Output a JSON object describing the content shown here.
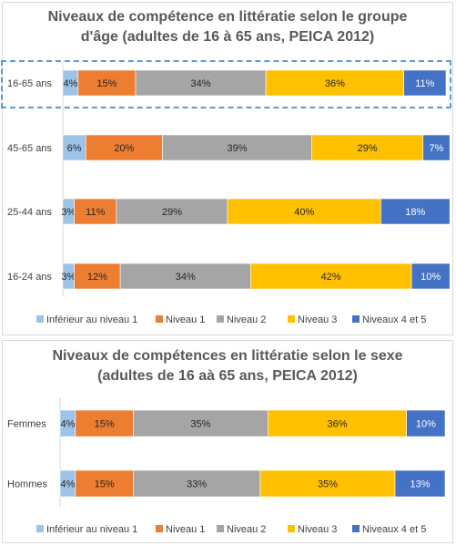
{
  "legend": [
    {
      "label": "Inférieur au niveau 1",
      "color": "#9dc3e6"
    },
    {
      "label": "Niveau 1",
      "color": "#ed7d31"
    },
    {
      "label": "Niveau 2",
      "color": "#a5a5a5"
    },
    {
      "label": "Niveau 3",
      "color": "#ffc000"
    },
    {
      "label": "Niveaux 4 et 5",
      "color": "#4472c4"
    }
  ],
  "chart_data": [
    {
      "type": "bar",
      "orientation": "horizontal-stacked-100",
      "title_lines": [
        "Niveaux de compétence en littératie selon le groupe",
        "d'âge (adultes de 16 à 65 ans, PEICA 2012)"
      ],
      "categories": [
        "16-65 ans",
        "45-65 ans",
        "25-44 ans",
        "16-24 ans"
      ],
      "series": [
        {
          "name": "Inférieur au niveau 1",
          "values": [
            4,
            6,
            3,
            3
          ]
        },
        {
          "name": "Niveau 1",
          "values": [
            15,
            20,
            11,
            12
          ]
        },
        {
          "name": "Niveau 2",
          "values": [
            34,
            39,
            29,
            34
          ]
        },
        {
          "name": "Niveau 3",
          "values": [
            36,
            29,
            40,
            42
          ]
        },
        {
          "name": "Niveaux 4 et 5",
          "values": [
            11,
            7,
            18,
            10
          ]
        }
      ],
      "highlighted_category": "16-65 ans",
      "legend_position": "bottom"
    },
    {
      "type": "bar",
      "orientation": "horizontal-stacked-100",
      "title_lines": [
        "Niveaux de compétences en littératie selon le sexe",
        "(adultes de 16 aà 65 ans, PEICA 2012)"
      ],
      "categories": [
        "Femmes",
        "Hommes"
      ],
      "series": [
        {
          "name": "Inférieur au niveau 1",
          "values": [
            4,
            4
          ]
        },
        {
          "name": "Niveau 1",
          "values": [
            15,
            15
          ]
        },
        {
          "name": "Niveau 2",
          "values": [
            35,
            33
          ]
        },
        {
          "name": "Niveau 3",
          "values": [
            36,
            35
          ]
        },
        {
          "name": "Niveaux 4 et 5",
          "values": [
            10,
            13
          ]
        }
      ],
      "legend_position": "bottom"
    }
  ]
}
